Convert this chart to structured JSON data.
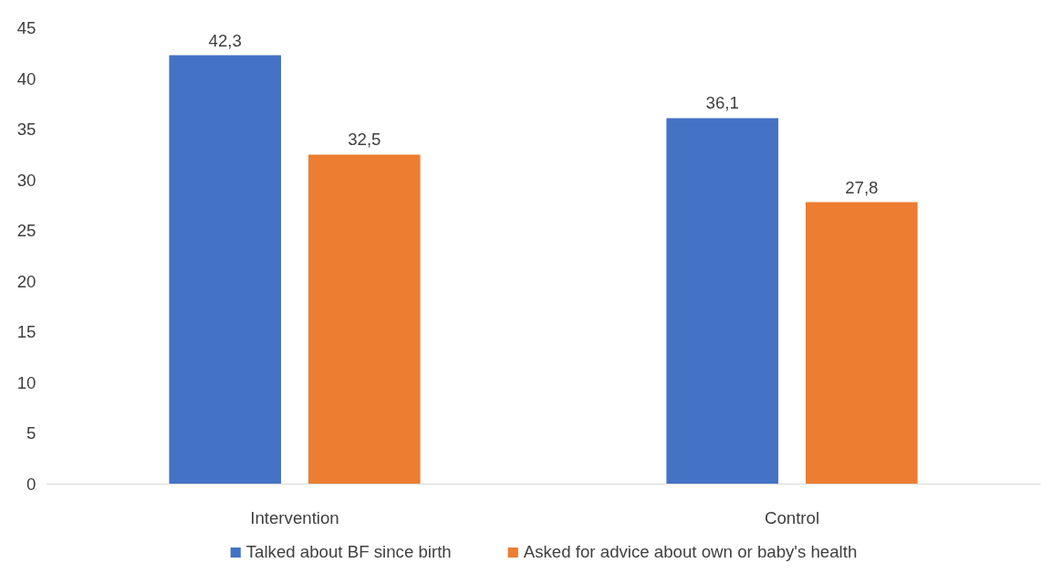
{
  "chart_data": {
    "type": "bar",
    "categories": [
      "Intervention",
      "Control"
    ],
    "series": [
      {
        "name": "Talked about BF since birth",
        "color": "#4472c4",
        "values": [
          42.3,
          36.1
        ],
        "value_labels": [
          "42,3",
          "36,1"
        ]
      },
      {
        "name": "Asked for advice about own or baby's health",
        "color": "#ed7d31",
        "values": [
          32.5,
          27.8
        ],
        "value_labels": [
          "32,5",
          "27,8"
        ]
      }
    ],
    "ylim": [
      0,
      45
    ],
    "yticks": [
      0,
      5,
      10,
      15,
      20,
      25,
      30,
      35,
      40,
      45
    ],
    "grid": false,
    "legend": "bottom"
  }
}
